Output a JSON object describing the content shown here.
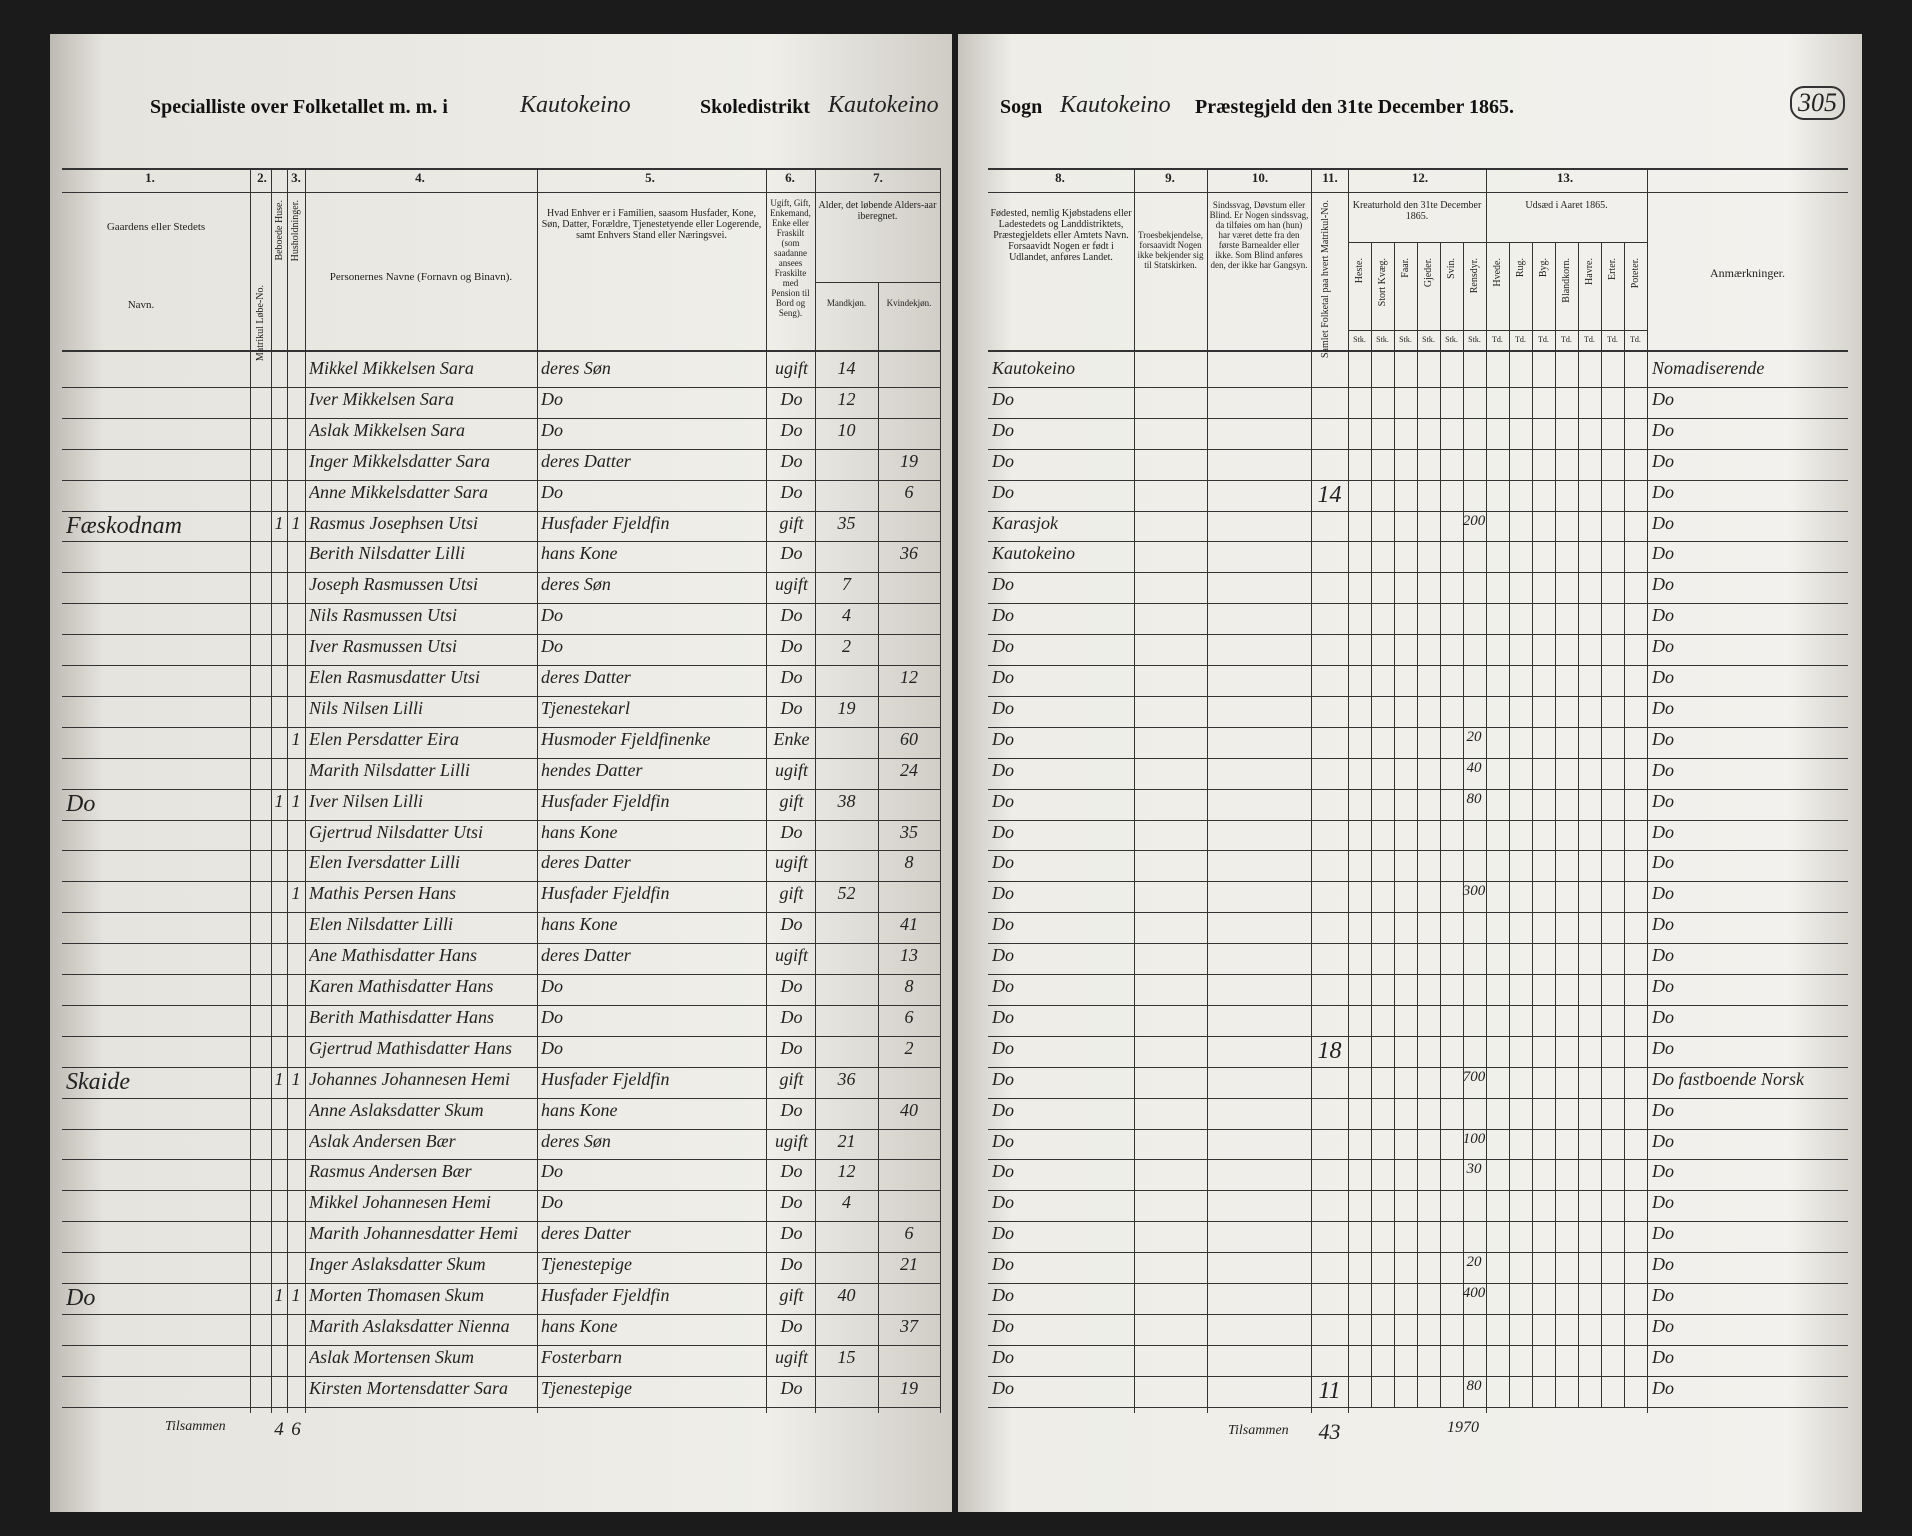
{
  "header": {
    "list_title": "Specialliste over Folketallet m. m. i",
    "list_place": "Kautokeino",
    "school_label": "Skoledistrikt",
    "school_place": "Kautokeino",
    "parish_label": "Sogn",
    "parish_place": "Kautokeino",
    "deanery_label": "Præstegjeld den 31te December 1865.",
    "page_number": "305"
  },
  "columns": {
    "numbers": [
      "1.",
      "2.",
      "3.",
      "4.",
      "5.",
      "6.",
      "7.",
      "8.",
      "9.",
      "10.",
      "11.",
      "12.",
      "13."
    ],
    "farm": "Gaardens eller Stedets",
    "farm_name": "Navn.",
    "matr": "Matrikul Løbe-No.",
    "houses": "Beboede Huse.",
    "households": "Husholdninger.",
    "name": "Personernes Navne (Fornavn og Binavn).",
    "role": "Hvad Enhver er i Familien, saasom Husfader, Kone, Søn, Datter, Forældre, Tjenestetyende eller Logerende, samt Enhvers Stand eller Næringsvei.",
    "status": "Ugift, Gift, Enkemand, Enke eller Fraskilt (som saadanne ansees Fraskilte med Pension til Bord og Seng).",
    "age": "Alder, det løbende Alders-aar iberegnet.",
    "age_m": "Mandkjøn.",
    "age_f": "Kvindekjøn.",
    "birthplace": "Fødested, nemlig Kjøbstadens eller Ladestedets og Landdistriktets, Præstegjeldets eller Amtets Navn. Forsaavidt Nogen er født i Udlandet, anføres Landet.",
    "faith": "Troesbekjendelse, forsaavidt Nogen ikke bekjender sig til Statskirken.",
    "disability": "Sindssvag, Døvstum eller Blind. Er Nogen sindssvag, da tilføies om han (hun) har været dette fra den første Barnealder eller ikke. Som Blind anføres den, der ikke har Gangsyn.",
    "population": "Samlet Folketal paa hvert Matrikul-No.",
    "livestock": "Kreaturhold den 31te December 1865.",
    "livestock_kinds": [
      "Heste.",
      "Stort Kvæg.",
      "Faar.",
      "Gjeder.",
      "Svin.",
      "Rensdyr."
    ],
    "livestock_unit": "Stk.",
    "seed": "Udsæd i Aaret 1865.",
    "seed_kinds": [
      "Hvede.",
      "Rug.",
      "Byg.",
      "Blandkorn.",
      "Havre.",
      "Erter.",
      "Poteter."
    ],
    "seed_unit": "Td.",
    "remarks": "Anmærkninger."
  },
  "rows": [
    {
      "name": "Mikkel Mikkelsen Sara",
      "role": "deres Søn",
      "status": "ugift",
      "age_m": 14,
      "birthplace": "Kautokeino",
      "remarks": "Nomadiserende"
    },
    {
      "name": "Iver Mikkelsen Sara",
      "role": "Do",
      "status": "Do",
      "age_m": 12,
      "birthplace": "Do",
      "remarks": "Do"
    },
    {
      "name": "Aslak Mikkelsen Sara",
      "role": "Do",
      "status": "Do",
      "age_m": 10,
      "birthplace": "Do",
      "remarks": "Do"
    },
    {
      "name": "Inger Mikkelsdatter Sara",
      "role": "deres Datter",
      "status": "Do",
      "age_f": 19,
      "birthplace": "Do",
      "remarks": "Do"
    },
    {
      "name": "Anne Mikkelsdatter Sara",
      "role": "Do",
      "status": "Do",
      "age_f": 6,
      "birthplace": "Do",
      "population": 14,
      "remarks": "Do"
    },
    {
      "farm": "Fæskodnam",
      "houses": 1,
      "households": 1,
      "name": "Rasmus Josephsen Utsi",
      "role": "Husfader Fjeldfin",
      "status": "gift",
      "age_m": 35,
      "birthplace": "Karasjok",
      "reindeer": 200,
      "remarks": "Do"
    },
    {
      "name": "Berith Nilsdatter Lilli",
      "role": "hans Kone",
      "status": "Do",
      "age_f": 36,
      "birthplace": "Kautokeino",
      "remarks": "Do"
    },
    {
      "name": "Joseph Rasmussen Utsi",
      "role": "deres Søn",
      "status": "ugift",
      "age_m": 7,
      "birthplace": "Do",
      "remarks": "Do"
    },
    {
      "name": "Nils Rasmussen Utsi",
      "role": "Do",
      "status": "Do",
      "age_m": 4,
      "birthplace": "Do",
      "remarks": "Do"
    },
    {
      "name": "Iver Rasmussen Utsi",
      "role": "Do",
      "status": "Do",
      "age_m": 2,
      "birthplace": "Do",
      "remarks": "Do"
    },
    {
      "name": "Elen Rasmusdatter Utsi",
      "role": "deres Datter",
      "status": "Do",
      "age_f": 12,
      "birthplace": "Do",
      "remarks": "Do"
    },
    {
      "name": "Nils Nilsen Lilli",
      "role": "Tjenestekarl",
      "status": "Do",
      "age_m": 19,
      "birthplace": "Do",
      "remarks": "Do"
    },
    {
      "households": 1,
      "name": "Elen Persdatter Eira",
      "role": "Husmoder Fjeldfinenke",
      "status": "Enke",
      "age_f": 60,
      "birthplace": "Do",
      "reindeer": 20,
      "remarks": "Do"
    },
    {
      "name": "Marith Nilsdatter Lilli",
      "role": "hendes Datter",
      "status": "ugift",
      "age_f": 24,
      "birthplace": "Do",
      "reindeer": 40,
      "remarks": "Do"
    },
    {
      "farm": "Do",
      "houses": 1,
      "households": 1,
      "name": "Iver Nilsen Lilli",
      "role": "Husfader Fjeldfin",
      "status": "gift",
      "age_m": 38,
      "birthplace": "Do",
      "reindeer": 80,
      "remarks": "Do"
    },
    {
      "name": "Gjertrud Nilsdatter Utsi",
      "role": "hans Kone",
      "status": "Do",
      "age_f": 35,
      "birthplace": "Do",
      "remarks": "Do"
    },
    {
      "name": "Elen Iversdatter Lilli",
      "role": "deres Datter",
      "status": "ugift",
      "age_f": 8,
      "birthplace": "Do",
      "remarks": "Do"
    },
    {
      "households": 1,
      "name": "Mathis Persen Hans",
      "role": "Husfader Fjeldfin",
      "status": "gift",
      "age_m": 52,
      "birthplace": "Do",
      "reindeer": 300,
      "remarks": "Do"
    },
    {
      "name": "Elen Nilsdatter Lilli",
      "role": "hans Kone",
      "status": "Do",
      "age_f": 41,
      "birthplace": "Do",
      "remarks": "Do"
    },
    {
      "name": "Ane Mathisdatter Hans",
      "role": "deres Datter",
      "status": "ugift",
      "age_f": 13,
      "birthplace": "Do",
      "remarks": "Do"
    },
    {
      "name": "Karen Mathisdatter Hans",
      "role": "Do",
      "status": "Do",
      "age_f": 8,
      "birthplace": "Do",
      "remarks": "Do"
    },
    {
      "name": "Berith Mathisdatter Hans",
      "role": "Do",
      "status": "Do",
      "age_f": 6,
      "birthplace": "Do",
      "remarks": "Do"
    },
    {
      "name": "Gjertrud Mathisdatter Hans",
      "role": "Do",
      "status": "Do",
      "age_f": 2,
      "birthplace": "Do",
      "population": 18,
      "remarks": "Do"
    },
    {
      "farm": "Skaide",
      "houses": 1,
      "households": 1,
      "name": "Johannes Johannesen Hemi",
      "role": "Husfader Fjeldfin",
      "status": "gift",
      "age_m": 36,
      "birthplace": "Do",
      "reindeer": 700,
      "remarks": "Do fastboende Norsk"
    },
    {
      "name": "Anne Aslaksdatter Skum",
      "role": "hans Kone",
      "status": "Do",
      "age_f": 40,
      "birthplace": "Do",
      "remarks": "Do"
    },
    {
      "name": "Aslak Andersen Bær",
      "role": "deres Søn",
      "status": "ugift",
      "age_m": 21,
      "birthplace": "Do",
      "reindeer": 100,
      "remarks": "Do"
    },
    {
      "name": "Rasmus Andersen Bær",
      "role": "Do",
      "status": "Do",
      "age_m": 12,
      "birthplace": "Do",
      "reindeer": 30,
      "remarks": "Do"
    },
    {
      "name": "Mikkel Johannesen Hemi",
      "role": "Do",
      "status": "Do",
      "age_m": 4,
      "birthplace": "Do",
      "remarks": "Do"
    },
    {
      "name": "Marith Johannesdatter Hemi",
      "role": "deres Datter",
      "status": "Do",
      "age_f": 6,
      "birthplace": "Do",
      "remarks": "Do"
    },
    {
      "name": "Inger Aslaksdatter Skum",
      "role": "Tjenestepige",
      "status": "Do",
      "age_f": 21,
      "birthplace": "Do",
      "reindeer": 20,
      "remarks": "Do"
    },
    {
      "farm": "Do",
      "houses": 1,
      "households": 1,
      "name": "Morten Thomasen Skum",
      "role": "Husfader Fjeldfin",
      "status": "gift",
      "age_m": 40,
      "birthplace": "Do",
      "reindeer": 400,
      "remarks": "Do"
    },
    {
      "name": "Marith Aslaksdatter Nienna",
      "role": "hans Kone",
      "status": "Do",
      "age_f": 37,
      "birthplace": "Do",
      "remarks": "Do"
    },
    {
      "name": "Aslak Mortensen Skum",
      "role": "Fosterbarn",
      "status": "ugift",
      "age_m": 15,
      "birthplace": "Do",
      "remarks": "Do"
    },
    {
      "name": "Kirsten Mortensdatter Sara",
      "role": "Tjenestepige",
      "status": "Do",
      "age_f": 19,
      "birthplace": "Do",
      "population": 11,
      "reindeer": 80,
      "remarks": "Do"
    }
  ],
  "totals": {
    "label_left": "Tilsammen",
    "houses": 4,
    "households": 6,
    "label_right": "Tilsammen",
    "population": 43,
    "reindeer": 1970
  }
}
